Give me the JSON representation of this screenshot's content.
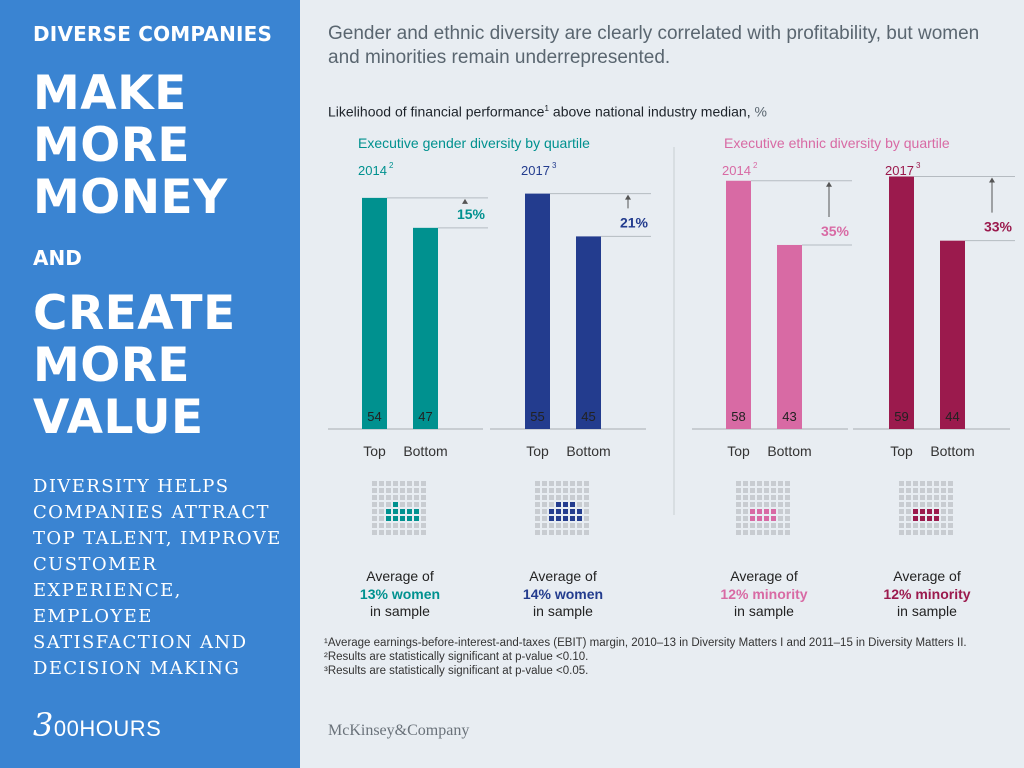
{
  "left_panel": {
    "kicker": "DIVERSE COMPANIES",
    "big1": [
      "MAKE",
      "MORE",
      "MONEY"
    ],
    "and": "AND",
    "big2": [
      "CREATE",
      "MORE",
      "VALUE"
    ],
    "paragraph": "DIVERSITY HELPS COMPANIES ATTRACT TOP TALENT, IMPROVE CUSTOMER EXPERIENCE, EMPLOYEE SATISFACTION AND DECISION MAKING",
    "logo_num": "3",
    "logo_text": "00HOURS"
  },
  "headline": "Gender and ethnic diversity are clearly correlated with profitability, but women and minorities remain underrepresented.",
  "subtitle": {
    "main": "Likelihood of financial performance",
    "sup": "1",
    "rest": " above national industry median,",
    "unit": "%"
  },
  "colors": {
    "teal": "#00918f",
    "navy": "#233c8e",
    "pink": "#d86aa4",
    "maroon": "#9b1a4d",
    "grid_dot": "#c8ccd1",
    "axis": "#a7adb3",
    "text_dark": "#222222"
  },
  "chart_data": {
    "type": "bar",
    "groups": [
      {
        "title": "Executive gender diversity by quartile",
        "title_color": "#00918f",
        "panels": [
          {
            "year": "2014",
            "sup": "2",
            "categories": [
              "Top",
              "Bottom"
            ],
            "values": [
              54,
              47
            ],
            "diff_label": "15%",
            "color": "#00918f",
            "label_color": "#00918f",
            "pct": 13,
            "avg_prefix": "Average of",
            "avg_value": "13% women",
            "avg_suffix": "in sample"
          },
          {
            "year": "2017",
            "sup": "3",
            "categories": [
              "Top",
              "Bottom"
            ],
            "values": [
              55,
              45
            ],
            "diff_label": "21%",
            "color": "#233c8e",
            "label_color": "#233c8e",
            "pct": 14,
            "avg_prefix": "Average of",
            "avg_value": "14% women",
            "avg_suffix": "in sample"
          }
        ]
      },
      {
        "title": "Executive ethnic diversity by quartile",
        "title_color": "#d86aa4",
        "panels": [
          {
            "year": "2014",
            "sup": "2",
            "categories": [
              "Top",
              "Bottom"
            ],
            "values": [
              58,
              43
            ],
            "diff_label": "35%",
            "color": "#d86aa4",
            "label_color": "#d86aa4",
            "pct": 12,
            "avg_prefix": "Average of",
            "avg_value": "12% minority",
            "avg_suffix": "in sample"
          },
          {
            "year": "2017",
            "sup": "3",
            "categories": [
              "Top",
              "Bottom"
            ],
            "values": [
              59,
              44
            ],
            "diff_label": "33%",
            "color": "#9b1a4d",
            "label_color": "#9b1a4d",
            "pct": 12,
            "avg_prefix": "Average of",
            "avg_value": "12% minority",
            "avg_suffix": "in sample"
          }
        ]
      }
    ],
    "ylim": [
      0,
      60
    ]
  },
  "footnotes": [
    "¹Average earnings-before-interest-and-taxes (EBIT) margin, 2010–13 in Diversity Matters I and 2011–15 in Diversity Matters II.",
    "²Results are statistically significant at p-value <0.10.",
    "³Results are statistically significant at p-value <0.05."
  ],
  "brand": "McKinsey&Company"
}
